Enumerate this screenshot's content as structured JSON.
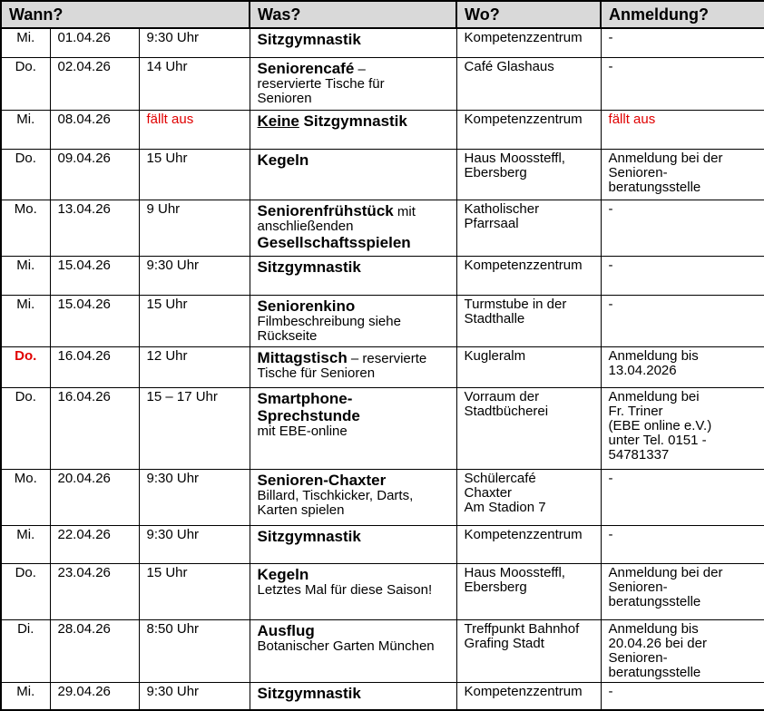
{
  "colors": {
    "accent_red": "#e00000",
    "header_background": "#d9d9d9",
    "border": "#000000",
    "text": "#000000"
  },
  "table": {
    "headers": [
      "Wann?",
      "Was?",
      "Wo?",
      "Anmeldung?"
    ],
    "rows": [
      {
        "day": "Mi.",
        "date": "01.04.26",
        "time": "9:30 Uhr",
        "what": [
          {
            "t": "Sitzgymnastik",
            "s": "title"
          }
        ],
        "where": "Kompetenzzentrum",
        "signup": "-"
      },
      {
        "day": "Do.",
        "date": "02.04.26",
        "time": "14 Uhr",
        "what": [
          {
            "t": "Seniorencafé",
            "s": "title"
          },
          {
            "t": " –\nreservierte Tische für\nSenioren"
          }
        ],
        "where": "Café Glashaus",
        "signup": "-"
      },
      {
        "day": "Mi.",
        "date": "08.04.26",
        "time": [
          {
            "t": "fällt aus",
            "s": "red"
          }
        ],
        "what": [
          {
            "t": "Keine",
            "s": "title u"
          },
          {
            "t": " Sitzgymnastik",
            "s": "title"
          }
        ],
        "where": "Kompetenzzentrum",
        "signup": [
          {
            "t": "fällt aus",
            "s": "red"
          }
        ]
      },
      {
        "day": "Do.",
        "date": "09.04.26",
        "time": "15 Uhr",
        "what": [
          {
            "t": "Kegeln",
            "s": "title"
          }
        ],
        "where": "Haus Moossteffl,\nEbersberg",
        "signup": "Anmeldung bei der\nSenioren-\nberatungsstelle"
      },
      {
        "day": "Mo.",
        "date": "13.04.26",
        "time": "9 Uhr",
        "what": [
          {
            "t": "Seniorenfrühstück",
            "s": "title"
          },
          {
            "t": " mit\nanschließenden\n"
          },
          {
            "t": "Gesellschaftsspielen",
            "s": "title"
          }
        ],
        "where": "Katholischer\nPfarrsaal",
        "signup": "-"
      },
      {
        "day": "Mi.",
        "date": "15.04.26",
        "time": "9:30 Uhr",
        "what": [
          {
            "t": "Sitzgymnastik",
            "s": "title"
          }
        ],
        "where": "Kompetenzzentrum",
        "signup": "-"
      },
      {
        "day": "Mi.",
        "date": "15.04.26",
        "time": "15 Uhr",
        "what": [
          {
            "t": "Seniorenkino",
            "s": "title"
          },
          {
            "t": "\nFilmbeschreibung siehe\nRückseite"
          }
        ],
        "where": "Turmstube in der\nStadthalle",
        "signup": "-"
      },
      {
        "day": [
          {
            "t": "Do.",
            "s": "red-bold"
          }
        ],
        "date": "16.04.26",
        "time": "12 Uhr",
        "what": [
          {
            "t": "Mittagstisch",
            "s": "title"
          },
          {
            "t": " – reservierte\nTische für Senioren"
          }
        ],
        "where": "Kugleralm",
        "signup": "Anmeldung bis\n13.04.2026"
      },
      {
        "day": "Do.",
        "date": "16.04.26",
        "time": "15 – 17 Uhr",
        "what": [
          {
            "t": "Smartphone-\nSprechstunde",
            "s": "title"
          },
          {
            "t": "\nmit EBE-online"
          }
        ],
        "where": "Vorraum der\nStadtbücherei",
        "signup": "Anmeldung bei\nFr. Triner\n(EBE online e.V.)\nunter Tel. 0151 -\n54781337"
      },
      {
        "day": "Mo.",
        "date": "20.04.26",
        "time": "9:30 Uhr",
        "what": [
          {
            "t": "Senioren-Chaxter",
            "s": "title"
          },
          {
            "t": "\nBillard, Tischkicker, Darts,\nKarten spielen"
          }
        ],
        "where": "Schülercafé\nChaxter\nAm Stadion 7",
        "signup": "-"
      },
      {
        "day": "Mi.",
        "date": "22.04.26",
        "time": "9:30 Uhr",
        "what": [
          {
            "t": "Sitzgymnastik",
            "s": "title"
          }
        ],
        "where": "Kompetenzzentrum",
        "signup": "-"
      },
      {
        "day": "Do.",
        "date": "23.04.26",
        "time": "15 Uhr",
        "what": [
          {
            "t": "Kegeln",
            "s": "title"
          },
          {
            "t": "\nLetztes Mal für diese Saison!"
          }
        ],
        "where": "Haus Moossteffl,\nEbersberg",
        "signup": "Anmeldung bei der\nSenioren-\nberatungsstelle"
      },
      {
        "day": "Di.",
        "date": "28.04.26",
        "time": "8:50 Uhr",
        "what": [
          {
            "t": "Ausflug",
            "s": "title"
          },
          {
            "t": "\nBotanischer Garten München"
          }
        ],
        "where": "Treffpunkt Bahnhof\nGrafing Stadt",
        "signup": "Anmeldung bis\n20.04.26 bei der\nSenioren-\nberatungsstelle"
      },
      {
        "day": "Mi.",
        "date": "29.04.26",
        "time": "9:30 Uhr",
        "what": [
          {
            "t": "Sitzgymnastik",
            "s": "title"
          }
        ],
        "where": "Kompetenzzentrum",
        "signup": "-"
      }
    ]
  }
}
